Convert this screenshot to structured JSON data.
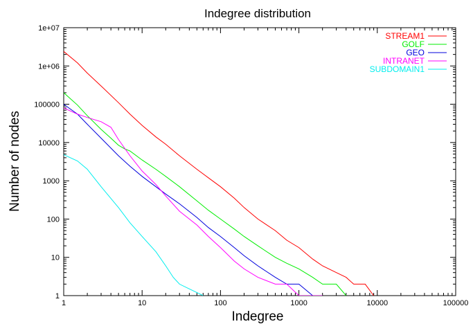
{
  "chart_data": {
    "type": "line",
    "title": "Indegree distribution",
    "xlabel": "Indegree",
    "ylabel": "Number of nodes",
    "x_scale": "log",
    "y_scale": "log",
    "xlim": [
      1,
      100000
    ],
    "ylim": [
      1,
      10000000
    ],
    "grid": false,
    "legend_position": "top-right",
    "x_tick_labels": [
      "1",
      "10",
      "100",
      "1000",
      "10000",
      "100000"
    ],
    "x_tick_values": [
      1,
      10,
      100,
      1000,
      10000,
      100000
    ],
    "y_tick_labels": [
      "1",
      "10",
      "100",
      "1000",
      "10000",
      "100000",
      "1e+06",
      "1e+07"
    ],
    "y_tick_values": [
      1,
      10,
      100,
      1000,
      10000,
      100000,
      1000000,
      10000000
    ],
    "series": [
      {
        "name": "STREAM1",
        "color": "#ff0000",
        "x": [
          1,
          1.5,
          2,
          3,
          5,
          7,
          10,
          15,
          20,
          30,
          50,
          70,
          100,
          150,
          200,
          300,
          500,
          700,
          1000,
          1500,
          2000,
          3000,
          4000,
          5000,
          7000,
          9000
        ],
        "y": [
          2400000,
          1200000,
          650000,
          300000,
          110000,
          55000,
          28000,
          14000,
          9000,
          4500,
          2000,
          1200,
          700,
          350,
          200,
          100,
          50,
          28,
          18,
          9,
          6,
          4,
          3,
          2,
          2,
          1
        ]
      },
      {
        "name": "GOLF",
        "color": "#00ee00",
        "x": [
          1,
          1.5,
          2,
          3,
          4,
          5,
          6,
          7,
          10,
          15,
          20,
          30,
          50,
          70,
          100,
          150,
          200,
          300,
          500,
          700,
          1000,
          1500,
          2000,
          3000,
          4000
        ],
        "y": [
          200000,
          95000,
          50000,
          22000,
          13000,
          8500,
          6800,
          6000,
          3500,
          2000,
          1300,
          700,
          300,
          170,
          100,
          55,
          35,
          20,
          10,
          7,
          5,
          3,
          2,
          2,
          1
        ]
      },
      {
        "name": "GEO",
        "color": "#0000dd",
        "x": [
          1,
          1.5,
          2,
          3,
          5,
          7,
          10,
          15,
          20,
          30,
          50,
          70,
          100,
          150,
          200,
          300,
          500,
          700,
          1000,
          1500,
          2000
        ],
        "y": [
          100000,
          55000,
          30000,
          13000,
          4500,
          2400,
          1300,
          700,
          450,
          250,
          110,
          60,
          35,
          18,
          11,
          6,
          3,
          2,
          2,
          1,
          1
        ]
      },
      {
        "name": "INTRANET",
        "color": "#ff00ff",
        "x": [
          1,
          1.5,
          2,
          3,
          4,
          5,
          7,
          10,
          15,
          20,
          30,
          50,
          70,
          100,
          150,
          200,
          300,
          500,
          700,
          1000,
          1500,
          2000
        ],
        "y": [
          80000,
          55000,
          45000,
          35000,
          25000,
          12000,
          4500,
          1800,
          800,
          400,
          160,
          70,
          35,
          18,
          8,
          5,
          3,
          2,
          2,
          1,
          1,
          1
        ]
      },
      {
        "name": "SUBDOMAIN1",
        "color": "#00eeee",
        "x": [
          1,
          1.5,
          2,
          3,
          5,
          7,
          10,
          15,
          20,
          25,
          30,
          40,
          50,
          60
        ],
        "y": [
          4800,
          3300,
          2000,
          700,
          200,
          80,
          35,
          14,
          6,
          3,
          2,
          1.5,
          1.2,
          1
        ]
      }
    ]
  }
}
